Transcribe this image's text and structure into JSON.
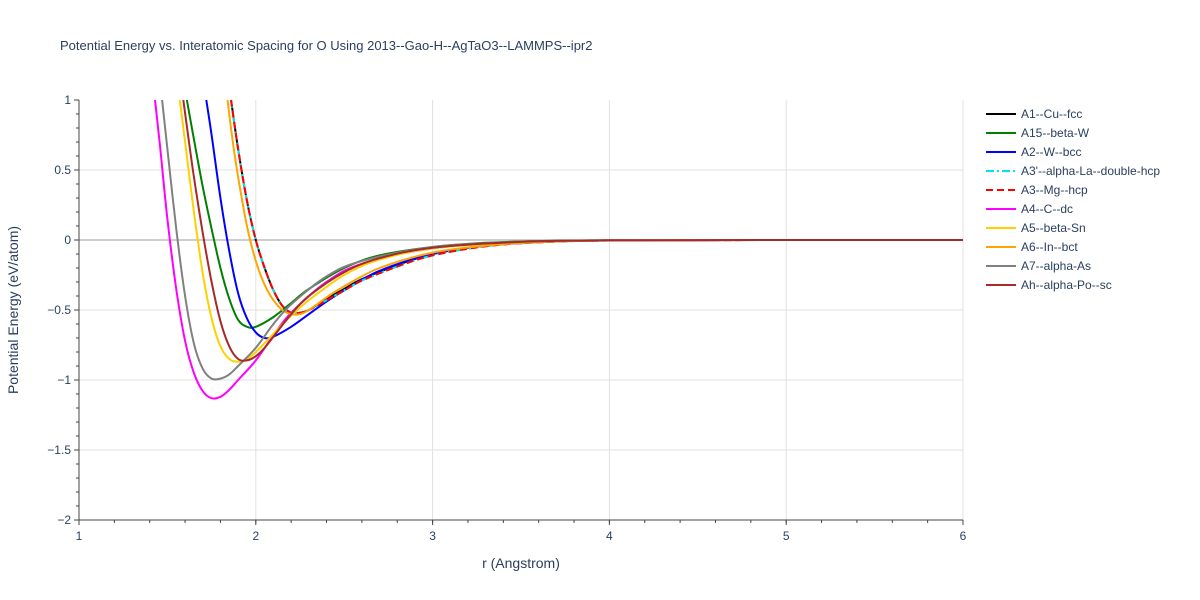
{
  "chart_data": {
    "type": "line",
    "title": "Potential Energy vs. Interatomic Spacing for O Using 2013--Gao-H--AgTaO3--LAMMPS--ipr2",
    "xlabel": "r (Angstrom)",
    "ylabel": "Potential Energy (eV/atom)",
    "xlim": [
      1,
      6
    ],
    "ylim": [
      -2,
      1
    ],
    "xticks": [
      "1",
      "2",
      "3",
      "4",
      "5",
      "6"
    ],
    "yticks": [
      "1",
      "0.5",
      "0",
      "−0.5",
      "−1",
      "−1.5",
      "−2"
    ],
    "grid": true,
    "legend_position": "right",
    "series": [
      {
        "name": "A1--Cu--fcc",
        "color": "#000000",
        "dash": "solid",
        "x": [
          1.86,
          1.9,
          1.95,
          2.0,
          2.05,
          2.1,
          2.15,
          2.2,
          2.25,
          2.3,
          2.4,
          2.5,
          2.6,
          2.8,
          3.0,
          3.3,
          3.6,
          4.0,
          5.0,
          6.0
        ],
        "y": [
          1.0,
          0.65,
          0.28,
          0.0,
          -0.2,
          -0.36,
          -0.47,
          -0.52,
          -0.52,
          -0.5,
          -0.42,
          -0.35,
          -0.28,
          -0.18,
          -0.1,
          -0.04,
          -0.015,
          -0.003,
          0.0,
          0.0
        ]
      },
      {
        "name": "A15--beta-W",
        "color": "#008000",
        "dash": "solid",
        "x": [
          1.61,
          1.65,
          1.7,
          1.75,
          1.8,
          1.85,
          1.9,
          1.95,
          2.0,
          2.1,
          2.2,
          2.3,
          2.5,
          2.7,
          3.0,
          3.3,
          3.6,
          4.0,
          5.0,
          6.0
        ],
        "y": [
          1.0,
          0.72,
          0.38,
          0.08,
          -0.2,
          -0.42,
          -0.57,
          -0.62,
          -0.62,
          -0.55,
          -0.45,
          -0.35,
          -0.2,
          -0.11,
          -0.05,
          -0.02,
          -0.008,
          -0.002,
          0.0,
          0.0
        ]
      },
      {
        "name": "A2--W--bcc",
        "color": "#0000ff",
        "dash": "solid",
        "x": [
          1.72,
          1.75,
          1.8,
          1.85,
          1.9,
          1.95,
          2.0,
          2.05,
          2.1,
          2.2,
          2.3,
          2.4,
          2.5,
          2.7,
          3.0,
          3.3,
          3.6,
          4.0,
          5.0,
          6.0
        ],
        "y": [
          1.0,
          0.75,
          0.3,
          -0.08,
          -0.38,
          -0.56,
          -0.66,
          -0.7,
          -0.69,
          -0.62,
          -0.53,
          -0.44,
          -0.36,
          -0.22,
          -0.1,
          -0.04,
          -0.015,
          -0.003,
          0.0,
          0.0
        ]
      },
      {
        "name": "A3'--alpha-La--double-hcp",
        "color": "#00e5ee",
        "dash": "dashdot",
        "x": [
          1.86,
          1.9,
          1.95,
          2.0,
          2.05,
          2.1,
          2.15,
          2.2,
          2.25,
          2.3,
          2.4,
          2.5,
          2.6,
          2.8,
          3.0,
          3.3,
          3.6,
          4.0,
          5.0,
          6.0
        ],
        "y": [
          1.0,
          0.65,
          0.28,
          0.0,
          -0.2,
          -0.36,
          -0.47,
          -0.52,
          -0.52,
          -0.5,
          -0.43,
          -0.36,
          -0.29,
          -0.19,
          -0.11,
          -0.045,
          -0.017,
          -0.004,
          0.0,
          0.0
        ]
      },
      {
        "name": "A3--Mg--hcp",
        "color": "#ff0000",
        "dash": "dash",
        "x": [
          1.86,
          1.9,
          1.95,
          2.0,
          2.05,
          2.1,
          2.15,
          2.2,
          2.25,
          2.3,
          2.4,
          2.5,
          2.6,
          2.8,
          3.0,
          3.3,
          3.6,
          4.0,
          5.0,
          6.0
        ],
        "y": [
          1.0,
          0.65,
          0.28,
          0.0,
          -0.2,
          -0.36,
          -0.47,
          -0.52,
          -0.52,
          -0.5,
          -0.43,
          -0.36,
          -0.29,
          -0.19,
          -0.11,
          -0.045,
          -0.017,
          -0.004,
          0.0,
          0.0
        ]
      },
      {
        "name": "A4--C--dc",
        "color": "#ff00ff",
        "dash": "solid",
        "x": [
          1.43,
          1.46,
          1.5,
          1.55,
          1.6,
          1.65,
          1.7,
          1.75,
          1.8,
          1.85,
          1.9,
          2.0,
          2.1,
          2.2,
          2.4,
          2.6,
          3.0,
          3.5,
          4.0,
          5.0,
          6.0
        ],
        "y": [
          1.0,
          0.65,
          0.15,
          -0.35,
          -0.72,
          -0.95,
          -1.08,
          -1.13,
          -1.12,
          -1.07,
          -1.0,
          -0.86,
          -0.68,
          -0.52,
          -0.3,
          -0.17,
          -0.06,
          -0.015,
          -0.003,
          0.0,
          0.0
        ]
      },
      {
        "name": "A5--beta-Sn",
        "color": "#ffd000",
        "dash": "solid",
        "x": [
          1.57,
          1.6,
          1.65,
          1.7,
          1.75,
          1.8,
          1.85,
          1.9,
          1.95,
          2.0,
          2.1,
          2.2,
          2.3,
          2.5,
          2.7,
          3.0,
          3.5,
          4.0,
          5.0,
          6.0
        ],
        "y": [
          1.0,
          0.7,
          0.2,
          -0.24,
          -0.56,
          -0.76,
          -0.85,
          -0.87,
          -0.85,
          -0.8,
          -0.67,
          -0.54,
          -0.43,
          -0.25,
          -0.14,
          -0.06,
          -0.015,
          -0.003,
          0.0,
          0.0
        ]
      },
      {
        "name": "A6--In--bct",
        "color": "#ffa500",
        "dash": "solid",
        "x": [
          1.84,
          1.87,
          1.9,
          1.95,
          2.0,
          2.05,
          2.1,
          2.15,
          2.2,
          2.25,
          2.3,
          2.4,
          2.5,
          2.7,
          3.0,
          3.3,
          3.6,
          4.0,
          5.0,
          6.0
        ],
        "y": [
          1.0,
          0.7,
          0.45,
          0.1,
          -0.15,
          -0.32,
          -0.43,
          -0.5,
          -0.53,
          -0.53,
          -0.5,
          -0.41,
          -0.33,
          -0.2,
          -0.09,
          -0.04,
          -0.015,
          -0.003,
          0.0,
          0.0
        ]
      },
      {
        "name": "A7--alpha-As",
        "color": "#808080",
        "dash": "solid",
        "x": [
          1.47,
          1.5,
          1.55,
          1.6,
          1.65,
          1.7,
          1.75,
          1.8,
          1.85,
          1.9,
          2.0,
          2.1,
          2.2,
          2.4,
          2.6,
          3.0,
          3.5,
          4.0,
          5.0,
          6.0
        ],
        "y": [
          1.0,
          0.65,
          0.08,
          -0.4,
          -0.74,
          -0.92,
          -0.99,
          -0.99,
          -0.96,
          -0.9,
          -0.77,
          -0.6,
          -0.46,
          -0.26,
          -0.15,
          -0.05,
          -0.012,
          -0.003,
          0.0,
          0.0
        ]
      },
      {
        "name": "Ah--alpha-Po--sc",
        "color": "#a52a2a",
        "dash": "solid",
        "x": [
          1.59,
          1.62,
          1.65,
          1.7,
          1.75,
          1.8,
          1.85,
          1.9,
          1.95,
          2.0,
          2.05,
          2.1,
          2.2,
          2.3,
          2.5,
          2.7,
          3.0,
          3.5,
          4.0,
          5.0,
          6.0
        ],
        "y": [
          1.0,
          0.72,
          0.45,
          0.05,
          -0.3,
          -0.58,
          -0.76,
          -0.85,
          -0.86,
          -0.83,
          -0.77,
          -0.69,
          -0.53,
          -0.4,
          -0.23,
          -0.13,
          -0.055,
          -0.013,
          -0.003,
          0.0,
          0.0
        ]
      }
    ]
  }
}
